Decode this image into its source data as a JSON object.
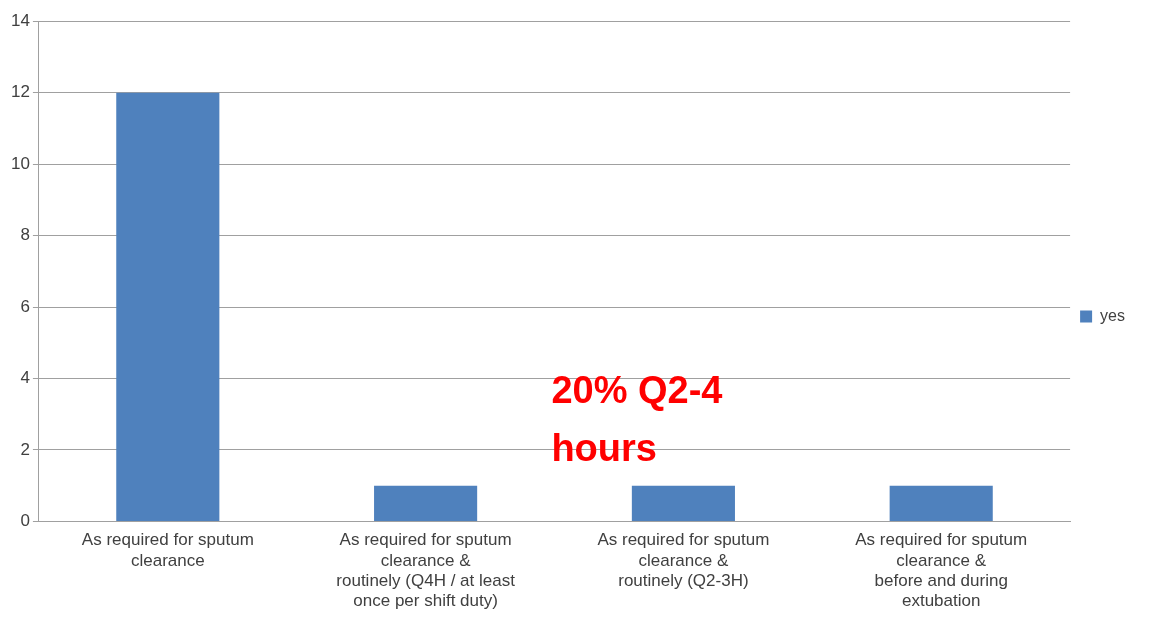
{
  "chart_data": {
    "type": "bar",
    "categories": [
      "As required for sputum\nclearance",
      "As required for sputum\nclearance &\nroutinely (Q4H / at least\nonce per shift duty)",
      "As required for sputum\nclearance &\nroutinely (Q2-3H)",
      "As required for sputum\nclearance &\nbefore and during\nextubation"
    ],
    "series": [
      {
        "name": "yes",
        "color": "#4f81bd",
        "values": [
          12,
          1,
          1,
          1
        ]
      }
    ],
    "ylim": [
      0,
      14
    ],
    "yticks": [
      0,
      2,
      4,
      6,
      8,
      10,
      12,
      14
    ],
    "grid": "y",
    "legend": "right",
    "annotations": [
      "20% Q2-4\nhours"
    ]
  }
}
